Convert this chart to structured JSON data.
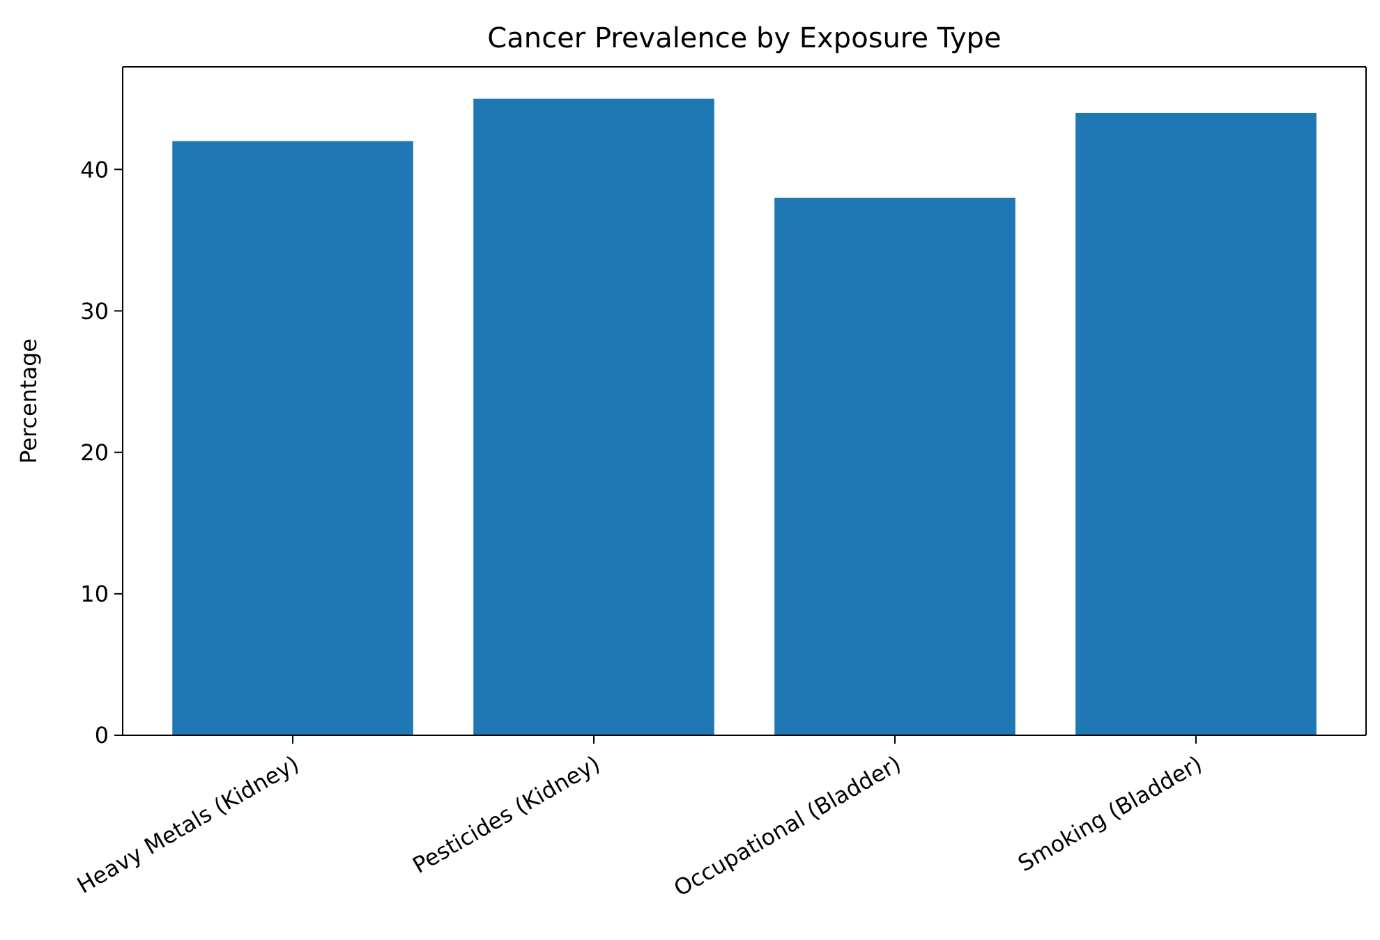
{
  "chart_data": {
    "type": "bar",
    "title": "Cancer Prevalence by Exposure Type",
    "ylabel": "Percentage",
    "categories": [
      "Heavy Metals (Kidney)",
      "Pesticides (Kidney)",
      "Occupational (Bladder)",
      "Smoking (Bladder)"
    ],
    "values": [
      42,
      45,
      38,
      44
    ],
    "color": "#1f77b4",
    "ylim": [
      0,
      47.25
    ],
    "yticks": [
      0,
      10,
      20,
      30,
      40
    ],
    "grid": false
  }
}
